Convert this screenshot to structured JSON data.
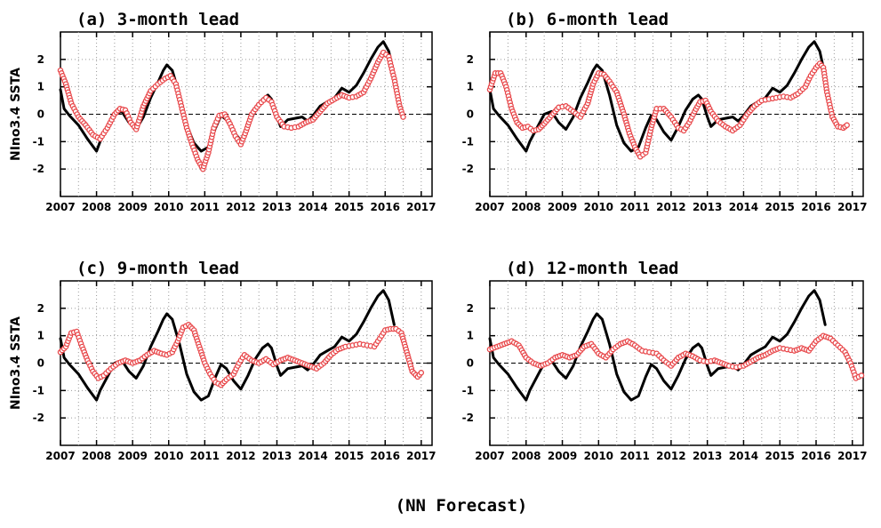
{
  "figure": {
    "caption": "(NN Forecast)"
  },
  "colors": {
    "observed": "#000000",
    "forecast": "#e8484b",
    "grid": "#9a9a9a",
    "zero_line": "#000000"
  },
  "chart_data": [
    {
      "type": "line",
      "title": "(a) 3-month lead",
      "ylabel": "NIno3.4 SSTA",
      "xlabel": "",
      "xlim": [
        2007,
        2017.3
      ],
      "ylim": [
        -3,
        3
      ],
      "x_ticks": [
        "2007",
        "2008",
        "2009",
        "2010",
        "2011",
        "2012",
        "2013",
        "2014",
        "2015",
        "2016",
        "2017"
      ],
      "y_ticks": [
        "2",
        "1",
        "0",
        "-1",
        "-2"
      ],
      "grid": true,
      "series": [
        {
          "role": "observed",
          "x": [
            2007.0,
            2007.1,
            2007.25,
            2007.5,
            2007.75,
            2008.0,
            2008.1,
            2008.3,
            2008.5,
            2008.7,
            2008.9,
            2009.1,
            2009.3,
            2009.5,
            2009.7,
            2009.85,
            2009.95,
            2010.1,
            2010.3,
            2010.5,
            2010.7,
            2010.9,
            2011.1,
            2011.3,
            2011.45,
            2011.6,
            2011.8,
            2012.0,
            2012.2,
            2012.4,
            2012.6,
            2012.75,
            2012.85,
            2013.0,
            2013.1,
            2013.3,
            2013.5,
            2013.7,
            2013.85,
            2014.0,
            2014.2,
            2014.4,
            2014.6,
            2014.8,
            2015.0,
            2015.2,
            2015.4,
            2015.6,
            2015.8,
            2015.95,
            2016.1,
            2016.25
          ],
          "y": [
            0.9,
            0.2,
            -0.05,
            -0.4,
            -0.9,
            -1.35,
            -1.0,
            -0.5,
            0.0,
            0.1,
            -0.3,
            -0.55,
            -0.1,
            0.6,
            1.15,
            1.6,
            1.8,
            1.6,
            0.7,
            -0.4,
            -1.05,
            -1.35,
            -1.2,
            -0.5,
            -0.05,
            -0.2,
            -0.65,
            -0.95,
            -0.45,
            0.15,
            0.55,
            0.7,
            0.55,
            -0.1,
            -0.45,
            -0.2,
            -0.15,
            -0.1,
            -0.25,
            -0.05,
            0.3,
            0.45,
            0.6,
            0.95,
            0.8,
            1.05,
            1.5,
            2.0,
            2.45,
            2.65,
            2.3,
            1.4
          ]
        },
        {
          "role": "forecast",
          "x": [
            2007.0,
            2007.15,
            2007.3,
            2007.5,
            2007.7,
            2007.9,
            2008.1,
            2008.3,
            2008.5,
            2008.65,
            2008.8,
            2008.95,
            2009.1,
            2009.3,
            2009.5,
            2009.7,
            2009.9,
            2010.05,
            2010.2,
            2010.35,
            2010.5,
            2010.65,
            2010.8,
            2010.95,
            2011.1,
            2011.25,
            2011.4,
            2011.55,
            2011.7,
            2011.85,
            2012.0,
            2012.15,
            2012.3,
            2012.5,
            2012.7,
            2012.85,
            2013.0,
            2013.2,
            2013.4,
            2013.6,
            2013.8,
            2014.0,
            2014.2,
            2014.4,
            2014.6,
            2014.8,
            2015.0,
            2015.2,
            2015.4,
            2015.6,
            2015.8,
            2015.95,
            2016.1,
            2016.25,
            2016.4,
            2016.5
          ],
          "y": [
            1.6,
            1.1,
            0.4,
            -0.1,
            -0.4,
            -0.75,
            -0.9,
            -0.5,
            0.0,
            0.2,
            0.15,
            -0.3,
            -0.55,
            0.3,
            0.85,
            1.1,
            1.3,
            1.4,
            1.1,
            0.3,
            -0.5,
            -1.1,
            -1.65,
            -2.0,
            -1.4,
            -0.5,
            -0.05,
            0.0,
            -0.35,
            -0.8,
            -1.1,
            -0.6,
            0.0,
            0.35,
            0.6,
            0.45,
            -0.1,
            -0.45,
            -0.5,
            -0.45,
            -0.3,
            -0.2,
            0.1,
            0.4,
            0.55,
            0.7,
            0.6,
            0.65,
            0.8,
            1.3,
            1.9,
            2.25,
            2.1,
            1.3,
            0.3,
            -0.1
          ]
        }
      ]
    },
    {
      "type": "line",
      "title": "(b) 6-month lead",
      "ylabel": "",
      "xlabel": "",
      "xlim": [
        2007,
        2017.3
      ],
      "ylim": [
        -3,
        3
      ],
      "x_ticks": [
        "2007",
        "2008",
        "2009",
        "2010",
        "2011",
        "2012",
        "2013",
        "2014",
        "2015",
        "2016",
        "2017"
      ],
      "y_ticks": [
        "2",
        "1",
        "0",
        "-1",
        "-2"
      ],
      "grid": true,
      "series": [
        {
          "role": "observed",
          "x": [
            2007.0,
            2007.1,
            2007.25,
            2007.5,
            2007.75,
            2008.0,
            2008.1,
            2008.3,
            2008.5,
            2008.7,
            2008.9,
            2009.1,
            2009.3,
            2009.5,
            2009.7,
            2009.85,
            2009.95,
            2010.1,
            2010.3,
            2010.5,
            2010.7,
            2010.9,
            2011.1,
            2011.3,
            2011.45,
            2011.6,
            2011.8,
            2012.0,
            2012.2,
            2012.4,
            2012.6,
            2012.75,
            2012.85,
            2013.0,
            2013.1,
            2013.3,
            2013.5,
            2013.7,
            2013.85,
            2014.0,
            2014.2,
            2014.4,
            2014.6,
            2014.8,
            2015.0,
            2015.2,
            2015.4,
            2015.6,
            2015.8,
            2015.95,
            2016.1,
            2016.25
          ],
          "y": [
            0.9,
            0.2,
            -0.05,
            -0.4,
            -0.9,
            -1.35,
            -1.0,
            -0.5,
            0.0,
            0.1,
            -0.3,
            -0.55,
            -0.1,
            0.6,
            1.15,
            1.6,
            1.8,
            1.6,
            0.7,
            -0.4,
            -1.05,
            -1.35,
            -1.2,
            -0.5,
            -0.05,
            -0.2,
            -0.65,
            -0.95,
            -0.45,
            0.15,
            0.55,
            0.7,
            0.55,
            -0.1,
            -0.45,
            -0.2,
            -0.15,
            -0.1,
            -0.25,
            -0.05,
            0.3,
            0.45,
            0.6,
            0.95,
            0.8,
            1.05,
            1.5,
            2.0,
            2.45,
            2.65,
            2.3,
            1.4
          ]
        },
        {
          "role": "forecast",
          "x": [
            2007.0,
            2007.15,
            2007.3,
            2007.45,
            2007.6,
            2007.75,
            2007.9,
            2008.05,
            2008.2,
            2008.35,
            2008.5,
            2008.7,
            2008.9,
            2009.1,
            2009.3,
            2009.5,
            2009.7,
            2009.85,
            2010.0,
            2010.15,
            2010.3,
            2010.5,
            2010.7,
            2010.85,
            2011.0,
            2011.15,
            2011.3,
            2011.45,
            2011.6,
            2011.8,
            2012.0,
            2012.2,
            2012.35,
            2012.5,
            2012.65,
            2012.8,
            2012.95,
            2013.1,
            2013.3,
            2013.5,
            2013.7,
            2013.9,
            2014.1,
            2014.3,
            2014.5,
            2014.7,
            2014.9,
            2015.1,
            2015.3,
            2015.5,
            2015.7,
            2015.85,
            2016.0,
            2016.1,
            2016.2,
            2016.3,
            2016.45,
            2016.6,
            2016.75,
            2016.85
          ],
          "y": [
            0.9,
            1.5,
            1.5,
            1.0,
            0.2,
            -0.3,
            -0.5,
            -0.45,
            -0.6,
            -0.55,
            -0.35,
            -0.05,
            0.25,
            0.3,
            0.1,
            -0.1,
            0.4,
            1.1,
            1.5,
            1.45,
            1.2,
            0.8,
            0.0,
            -0.7,
            -1.2,
            -1.55,
            -1.4,
            -0.5,
            0.2,
            0.2,
            -0.1,
            -0.5,
            -0.6,
            -0.3,
            0.1,
            0.45,
            0.5,
            0.1,
            -0.25,
            -0.45,
            -0.6,
            -0.4,
            0.0,
            0.3,
            0.5,
            0.55,
            0.6,
            0.65,
            0.6,
            0.75,
            1.0,
            1.4,
            1.7,
            1.85,
            1.7,
            0.8,
            -0.1,
            -0.45,
            -0.5,
            -0.4
          ]
        }
      ]
    },
    {
      "type": "line",
      "title": "(c) 9-month lead",
      "ylabel": "NIno3.4 SSTA",
      "xlabel": "",
      "xlim": [
        2007,
        2017.3
      ],
      "ylim": [
        -3,
        3
      ],
      "x_ticks": [
        "2007",
        "2008",
        "2009",
        "2010",
        "2011",
        "2012",
        "2013",
        "2014",
        "2015",
        "2016",
        "2017"
      ],
      "y_ticks": [
        "2",
        "1",
        "0",
        "-1",
        "-2"
      ],
      "grid": true,
      "series": [
        {
          "role": "observed",
          "x": [
            2007.0,
            2007.1,
            2007.25,
            2007.5,
            2007.75,
            2008.0,
            2008.1,
            2008.3,
            2008.5,
            2008.7,
            2008.9,
            2009.1,
            2009.3,
            2009.5,
            2009.7,
            2009.85,
            2009.95,
            2010.1,
            2010.3,
            2010.5,
            2010.7,
            2010.9,
            2011.1,
            2011.3,
            2011.45,
            2011.6,
            2011.8,
            2012.0,
            2012.2,
            2012.4,
            2012.6,
            2012.75,
            2012.85,
            2013.0,
            2013.1,
            2013.3,
            2013.5,
            2013.7,
            2013.85,
            2014.0,
            2014.2,
            2014.4,
            2014.6,
            2014.8,
            2015.0,
            2015.2,
            2015.4,
            2015.6,
            2015.8,
            2015.95,
            2016.1,
            2016.25
          ],
          "y": [
            0.9,
            0.2,
            -0.05,
            -0.4,
            -0.9,
            -1.35,
            -1.0,
            -0.5,
            0.0,
            0.1,
            -0.3,
            -0.55,
            -0.1,
            0.6,
            1.15,
            1.6,
            1.8,
            1.6,
            0.7,
            -0.4,
            -1.05,
            -1.35,
            -1.2,
            -0.5,
            -0.05,
            -0.2,
            -0.65,
            -0.95,
            -0.45,
            0.15,
            0.55,
            0.7,
            0.55,
            -0.1,
            -0.45,
            -0.2,
            -0.15,
            -0.1,
            -0.25,
            -0.05,
            0.3,
            0.45,
            0.6,
            0.95,
            0.8,
            1.05,
            1.5,
            2.0,
            2.45,
            2.65,
            2.3,
            1.4
          ]
        },
        {
          "role": "forecast",
          "x": [
            2007.0,
            2007.15,
            2007.3,
            2007.45,
            2007.6,
            2007.75,
            2007.9,
            2008.05,
            2008.2,
            2008.4,
            2008.6,
            2008.8,
            2009.0,
            2009.2,
            2009.4,
            2009.6,
            2009.8,
            2009.95,
            2010.1,
            2010.25,
            2010.4,
            2010.55,
            2010.7,
            2010.85,
            2011.0,
            2011.15,
            2011.3,
            2011.45,
            2011.6,
            2011.8,
            2011.95,
            2012.1,
            2012.3,
            2012.5,
            2012.7,
            2012.9,
            2013.1,
            2013.3,
            2013.5,
            2013.7,
            2013.9,
            2014.1,
            2014.3,
            2014.5,
            2014.7,
            2014.9,
            2015.1,
            2015.3,
            2015.5,
            2015.7,
            2015.85,
            2016.0,
            2016.15,
            2016.3,
            2016.45,
            2016.6,
            2016.75,
            2016.9,
            2017.0
          ],
          "y": [
            0.4,
            0.6,
            1.1,
            1.15,
            0.6,
            0.1,
            -0.3,
            -0.55,
            -0.45,
            -0.2,
            0.0,
            0.1,
            0.0,
            0.1,
            0.3,
            0.45,
            0.35,
            0.3,
            0.4,
            0.8,
            1.3,
            1.4,
            1.2,
            0.6,
            0.0,
            -0.4,
            -0.7,
            -0.8,
            -0.6,
            -0.4,
            0.0,
            0.3,
            0.1,
            0.0,
            0.15,
            -0.05,
            0.1,
            0.2,
            0.1,
            0.0,
            -0.1,
            -0.2,
            0.0,
            0.3,
            0.5,
            0.6,
            0.65,
            0.7,
            0.65,
            0.6,
            0.9,
            1.2,
            1.25,
            1.25,
            1.1,
            0.4,
            -0.3,
            -0.5,
            -0.35
          ]
        }
      ]
    },
    {
      "type": "line",
      "title": "(d) 12-month lead",
      "ylabel": "",
      "xlabel": "",
      "xlim": [
        2007,
        2017.3
      ],
      "ylim": [
        -3,
        3
      ],
      "x_ticks": [
        "2007",
        "2008",
        "2009",
        "2010",
        "2011",
        "2012",
        "2013",
        "2014",
        "2015",
        "2016",
        "2017"
      ],
      "y_ticks": [
        "2",
        "1",
        "0",
        "-1",
        "-2"
      ],
      "grid": true,
      "series": [
        {
          "role": "observed",
          "x": [
            2007.0,
            2007.1,
            2007.25,
            2007.5,
            2007.75,
            2008.0,
            2008.1,
            2008.3,
            2008.5,
            2008.7,
            2008.9,
            2009.1,
            2009.3,
            2009.5,
            2009.7,
            2009.85,
            2009.95,
            2010.1,
            2010.3,
            2010.5,
            2010.7,
            2010.9,
            2011.1,
            2011.3,
            2011.45,
            2011.6,
            2011.8,
            2012.0,
            2012.2,
            2012.4,
            2012.6,
            2012.75,
            2012.85,
            2013.0,
            2013.1,
            2013.3,
            2013.5,
            2013.7,
            2013.85,
            2014.0,
            2014.2,
            2014.4,
            2014.6,
            2014.8,
            2015.0,
            2015.2,
            2015.4,
            2015.6,
            2015.8,
            2015.95,
            2016.1,
            2016.25
          ],
          "y": [
            0.9,
            0.2,
            -0.05,
            -0.4,
            -0.9,
            -1.35,
            -1.0,
            -0.5,
            0.0,
            0.1,
            -0.3,
            -0.55,
            -0.1,
            0.6,
            1.15,
            1.6,
            1.8,
            1.6,
            0.7,
            -0.4,
            -1.05,
            -1.35,
            -1.2,
            -0.5,
            -0.05,
            -0.2,
            -0.65,
            -0.95,
            -0.45,
            0.15,
            0.55,
            0.7,
            0.55,
            -0.1,
            -0.45,
            -0.2,
            -0.15,
            -0.1,
            -0.25,
            -0.05,
            0.3,
            0.45,
            0.6,
            0.95,
            0.8,
            1.05,
            1.5,
            2.0,
            2.45,
            2.65,
            2.3,
            1.4
          ]
        },
        {
          "role": "forecast",
          "x": [
            2007.0,
            2007.2,
            2007.4,
            2007.6,
            2007.8,
            2008.0,
            2008.2,
            2008.4,
            2008.6,
            2008.8,
            2009.0,
            2009.2,
            2009.4,
            2009.6,
            2009.8,
            2010.0,
            2010.2,
            2010.4,
            2010.6,
            2010.8,
            2011.0,
            2011.2,
            2011.4,
            2011.6,
            2011.8,
            2012.0,
            2012.2,
            2012.4,
            2012.6,
            2012.8,
            2013.0,
            2013.2,
            2013.4,
            2013.6,
            2013.8,
            2014.0,
            2014.2,
            2014.4,
            2014.6,
            2014.8,
            2015.0,
            2015.2,
            2015.4,
            2015.6,
            2015.8,
            2016.0,
            2016.2,
            2016.4,
            2016.6,
            2016.8,
            2016.95,
            2017.1,
            2017.25
          ],
          "y": [
            0.5,
            0.6,
            0.7,
            0.8,
            0.65,
            0.2,
            0.0,
            -0.1,
            0.0,
            0.2,
            0.3,
            0.2,
            0.3,
            0.6,
            0.7,
            0.35,
            0.2,
            0.5,
            0.7,
            0.8,
            0.65,
            0.45,
            0.4,
            0.35,
            0.1,
            -0.1,
            0.2,
            0.35,
            0.25,
            0.1,
            0.05,
            0.1,
            0.0,
            -0.1,
            -0.15,
            -0.1,
            0.05,
            0.2,
            0.3,
            0.45,
            0.55,
            0.5,
            0.45,
            0.55,
            0.45,
            0.8,
            1.0,
            0.9,
            0.65,
            0.4,
            0.0,
            -0.55,
            -0.45
          ]
        }
      ]
    }
  ]
}
